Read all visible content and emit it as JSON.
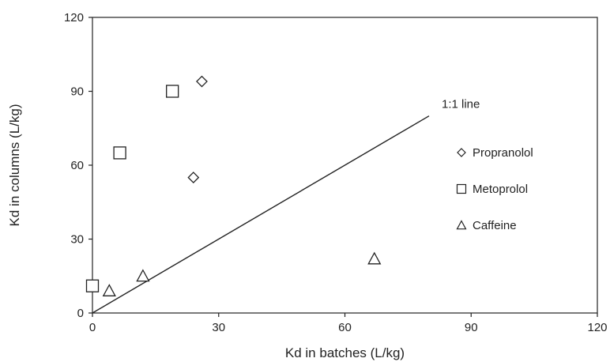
{
  "chart_data": {
    "type": "scatter",
    "xlabel": "Kd in batches (L/kg)",
    "ylabel": "Kd in columns (L/kg)",
    "xlim": [
      0,
      120
    ],
    "ylim": [
      0,
      120
    ],
    "x_ticks": [
      "0",
      "30",
      "60",
      "90",
      "120"
    ],
    "y_ticks": [
      "0",
      "30",
      "60",
      "90",
      "120"
    ],
    "grid": false,
    "legend_position": "right",
    "series": [
      {
        "name": "Propranolol",
        "marker": "diamond",
        "points": [
          [
            26,
            94
          ],
          [
            24,
            55
          ]
        ]
      },
      {
        "name": "Metoprolol",
        "marker": "square",
        "points": [
          [
            19,
            90
          ],
          [
            6.5,
            65
          ],
          [
            0,
            11
          ]
        ]
      },
      {
        "name": "Caffeine",
        "marker": "triangle",
        "points": [
          [
            4,
            9
          ],
          [
            12,
            15
          ],
          [
            67,
            22
          ]
        ]
      }
    ],
    "reference_line": {
      "label": "1:1 line",
      "from": [
        0,
        0
      ],
      "to": [
        80,
        80
      ]
    },
    "colors": {
      "axis": "#222222",
      "marker_stroke": "#222222"
    }
  }
}
